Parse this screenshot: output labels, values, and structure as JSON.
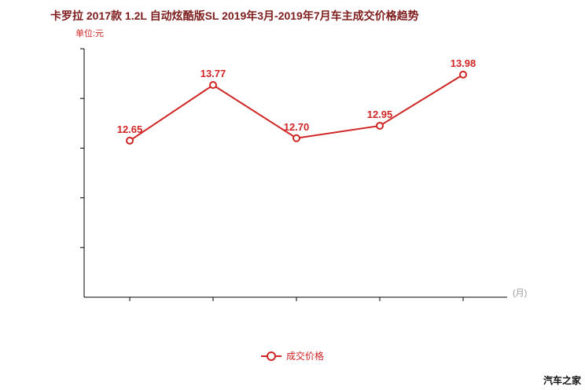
{
  "title": "卡罗拉 2017款 1.2L 自动炫酷版SL 2019年3月-2019年7月车主成交价格趋势",
  "unit_label": "单位:元",
  "axis": {
    "x_label": "(月)"
  },
  "legend": {
    "label": "成交价格"
  },
  "watermark": "汽车之家",
  "colors": {
    "accent": "#cf2525",
    "title": "#7e1d1d",
    "axis": "#000000",
    "muted": "#999999"
  },
  "chart_data": {
    "type": "line",
    "title": "卡罗拉 2017款 1.2L 自动炫酷版SL 2019年3月-2019年7月车主成交价格趋势",
    "ylabel": "单位:元",
    "xlabel": "(月)",
    "x_tick_labels": [
      "",
      "",
      "",
      "",
      ""
    ],
    "series": [
      {
        "name": "成交价格",
        "values": [
          12.65,
          13.77,
          12.7,
          12.95,
          13.98
        ],
        "point_labels": [
          "12.65",
          "13.77",
          "12.70",
          "12.95",
          "13.98"
        ]
      }
    ],
    "ylim": [
      9.5,
      14.5
    ],
    "grid": false,
    "legend_position": "bottom"
  }
}
